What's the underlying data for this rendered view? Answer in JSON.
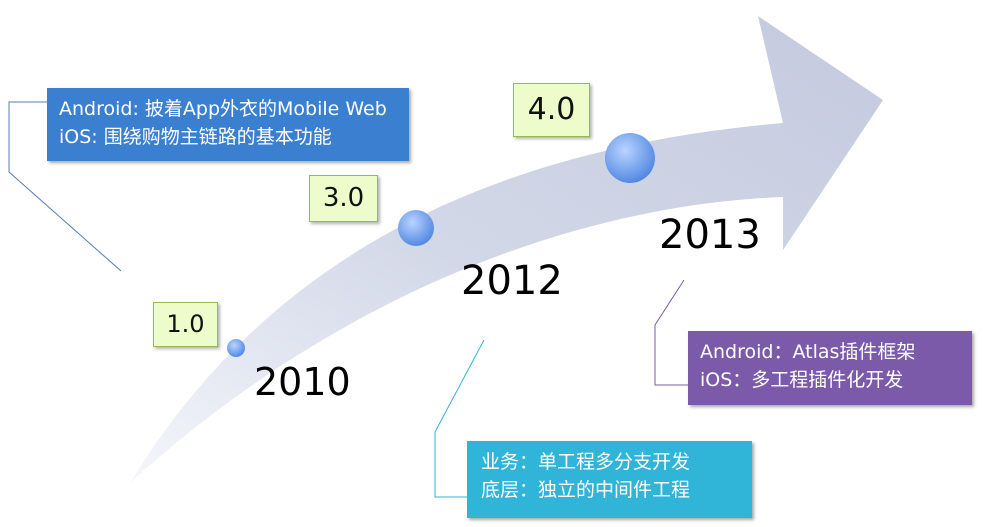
{
  "timeline": {
    "arrow_color": "#c9cfe2",
    "milestones": [
      {
        "version": "1.0",
        "year": "2010"
      },
      {
        "version": "3.0",
        "year": "2012"
      },
      {
        "version": "4.0",
        "year": "2013"
      }
    ]
  },
  "callouts": {
    "c2010": {
      "line1": "Android: 披着App外衣的Mobile Web",
      "line2": "iOS: 围绕购物主链路的基本功能",
      "color": "#3a7fd0"
    },
    "c2012": {
      "line1": "业务：单工程多分支开发",
      "line2": "底层：独立的中间件工程",
      "color": "#30b4d8"
    },
    "c2013": {
      "line1": "Android：Atlas插件框架",
      "line2": "iOS：多工程插件化开发",
      "color": "#7c5aaa"
    }
  }
}
